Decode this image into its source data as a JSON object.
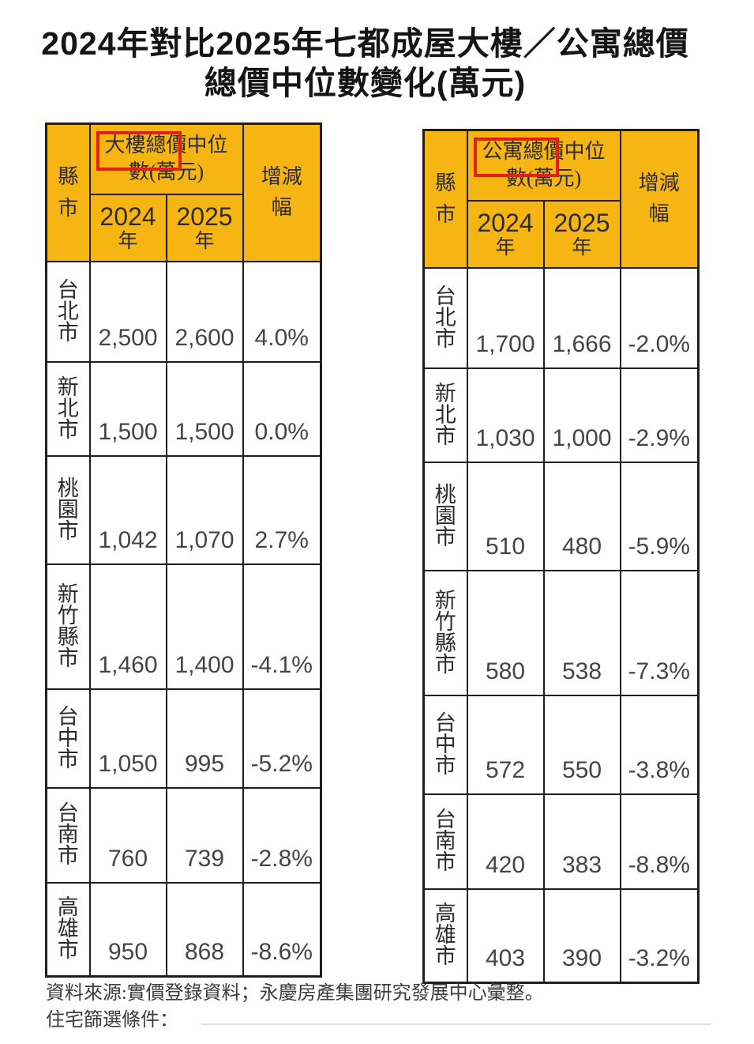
{
  "title": {
    "line1": "2024年對比2025年七都成屋大樓／公寓總價",
    "line2": "總價中位數變化(萬元)"
  },
  "colors": {
    "header_bg": "#f6b513",
    "highlight_box": "#e2201a",
    "border": "#1e1e1e"
  },
  "tables": [
    {
      "name": "大樓",
      "header": {
        "county_label": "縣市",
        "metric_line1": "大樓總價中位",
        "metric_line2": "數(萬元)",
        "year1": "2024",
        "year1_suffix": "年",
        "year2": "2025",
        "year2_suffix": "年",
        "change_line1": "增減",
        "change_line2": "幅"
      },
      "rows": [
        {
          "city": "台北市",
          "y2024": "2,500",
          "y2025": "2,600",
          "change": "4.0%"
        },
        {
          "city": "新北市",
          "y2024": "1,500",
          "y2025": "1,500",
          "change": "0.0%"
        },
        {
          "city": "桃園市",
          "y2024": "1,042",
          "y2025": "1,070",
          "change": "2.7%"
        },
        {
          "city": "新竹縣市",
          "y2024": "1,460",
          "y2025": "1,400",
          "change": "-4.1%"
        },
        {
          "city": "台中市",
          "y2024": "1,050",
          "y2025": "995",
          "change": "-5.2%"
        },
        {
          "city": "台南市",
          "y2024": "760",
          "y2025": "739",
          "change": "-2.8%"
        },
        {
          "city": "高雄市",
          "y2024": "950",
          "y2025": "868",
          "change": "-8.6%"
        }
      ]
    },
    {
      "name": "公寓",
      "header": {
        "county_label": "縣市",
        "metric_line1": "公寓總價中位",
        "metric_line2": "數(萬元)",
        "year1": "2024",
        "year1_suffix": "年",
        "year2": "2025",
        "year2_suffix": "年",
        "change_line1": "增減",
        "change_line2": "幅"
      },
      "rows": [
        {
          "city": "台北市",
          "y2024": "1,700",
          "y2025": "1,666",
          "change": "-2.0%"
        },
        {
          "city": "新北市",
          "y2024": "1,030",
          "y2025": "1,000",
          "change": "-2.9%"
        },
        {
          "city": "桃園市",
          "y2024": "510",
          "y2025": "480",
          "change": "-5.9%"
        },
        {
          "city": "新竹縣市",
          "y2024": "580",
          "y2025": "538",
          "change": "-7.3%"
        },
        {
          "city": "台中市",
          "y2024": "572",
          "y2025": "550",
          "change": "-3.8%"
        },
        {
          "city": "台南市",
          "y2024": "420",
          "y2025": "383",
          "change": "-8.8%"
        },
        {
          "city": "高雄市",
          "y2024": "403",
          "y2025": "390",
          "change": "-3.2%"
        }
      ]
    }
  ],
  "footer": {
    "line1": "資料來源:實價登錄資料；永慶房產集團研究發展中心彙整。",
    "line2": "住宅篩選條件："
  }
}
